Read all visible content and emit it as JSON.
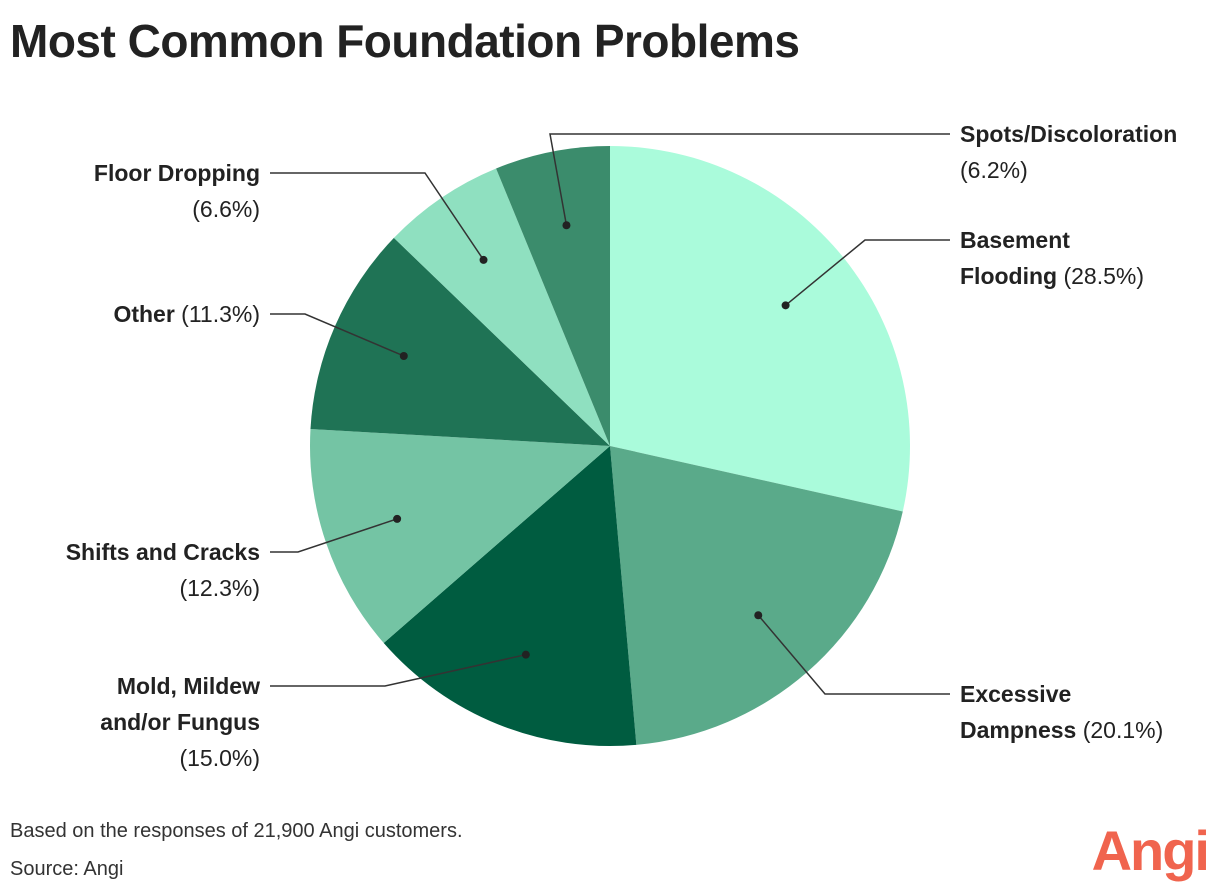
{
  "chart_data": {
    "type": "pie",
    "title": "Most Common Foundation Problems",
    "categories": [
      "Basement Flooding",
      "Excessive Dampness",
      "Mold, Mildew and/or Fungus",
      "Shifts and Cracks",
      "Other",
      "Floor Dropping",
      "Spots/Discoloration"
    ],
    "values": [
      28.5,
      20.1,
      15.0,
      12.3,
      11.3,
      6.6,
      6.2
    ],
    "value_labels": [
      "(28.5%)",
      "(20.1%)",
      "(15.0%)",
      "(12.3%)",
      "(11.3%)",
      "(6.6%)",
      "(6.2%)"
    ],
    "colors": [
      "#aafbdb",
      "#5aaa8a",
      "#005c40",
      "#74c4a4",
      "#1f7355",
      "#8fe0c0",
      "#3b8c6c"
    ],
    "note": "Based on the responses of 21,900 Angi customers.",
    "source": "Source: Angi",
    "logo": "Angi"
  }
}
